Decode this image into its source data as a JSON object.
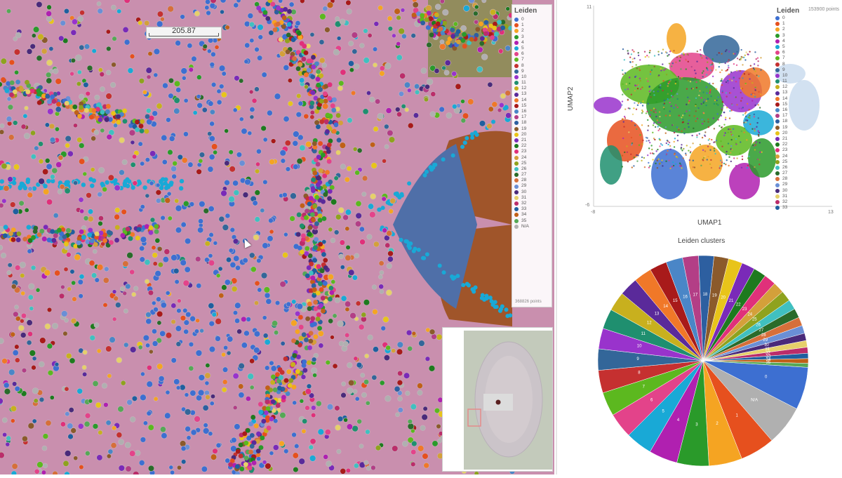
{
  "spatial": {
    "scale_label": "205.87",
    "legend_title": "Leiden",
    "points_label": "368826 points"
  },
  "umap": {
    "legend_title": "Leiden",
    "points_label": "153900 points",
    "xlabel": "UMAP1",
    "ylabel": "UMAP2",
    "x_ticks": [
      "-8",
      "13"
    ],
    "y_ticks": [
      "11",
      "-6"
    ]
  },
  "pie": {
    "title": "Leiden clusters"
  },
  "clusters": [
    {
      "label": "0",
      "color": "#3d6fd1"
    },
    {
      "label": "1",
      "color": "#e6501e"
    },
    {
      "label": "2",
      "color": "#f5a422"
    },
    {
      "label": "3",
      "color": "#2a9a2a"
    },
    {
      "label": "4",
      "color": "#b020b0"
    },
    {
      "label": "5",
      "color": "#19a9d6"
    },
    {
      "label": "6",
      "color": "#e3438a"
    },
    {
      "label": "7",
      "color": "#5cb81f"
    },
    {
      "label": "8",
      "color": "#c53030"
    },
    {
      "label": "9",
      "color": "#336699"
    },
    {
      "label": "10",
      "color": "#9933cc"
    },
    {
      "label": "11",
      "color": "#1f8f6f"
    },
    {
      "label": "12",
      "color": "#c8b01e"
    },
    {
      "label": "13",
      "color": "#5a2a9a"
    },
    {
      "label": "14",
      "color": "#f07828"
    },
    {
      "label": "15",
      "color": "#a81a1a"
    },
    {
      "label": "16",
      "color": "#4a86c7"
    },
    {
      "label": "17",
      "color": "#b33e86"
    },
    {
      "label": "18",
      "color": "#2d5fa0"
    },
    {
      "label": "19",
      "color": "#8b5a2b"
    },
    {
      "label": "20",
      "color": "#e8c41a"
    },
    {
      "label": "21",
      "color": "#7a2ab8"
    },
    {
      "label": "22",
      "color": "#1e7a1e"
    },
    {
      "label": "23",
      "color": "#e0307a"
    },
    {
      "label": "24",
      "color": "#d4a03a"
    },
    {
      "label": "25",
      "color": "#8fa21e"
    },
    {
      "label": "26",
      "color": "#40c0c0"
    },
    {
      "label": "27",
      "color": "#2a6b2a"
    },
    {
      "label": "28",
      "color": "#d66f3a"
    },
    {
      "label": "29",
      "color": "#6a8fd6"
    },
    {
      "label": "30",
      "color": "#4a2a7a"
    },
    {
      "label": "31",
      "color": "#e6d06a"
    },
    {
      "label": "32",
      "color": "#bb2d6a"
    },
    {
      "label": "33",
      "color": "#1f5f9f"
    },
    {
      "label": "34",
      "color": "#c06018"
    },
    {
      "label": "35",
      "color": "#56a856"
    },
    {
      "label": "N/A",
      "color": "#b0b0b0"
    }
  ]
}
